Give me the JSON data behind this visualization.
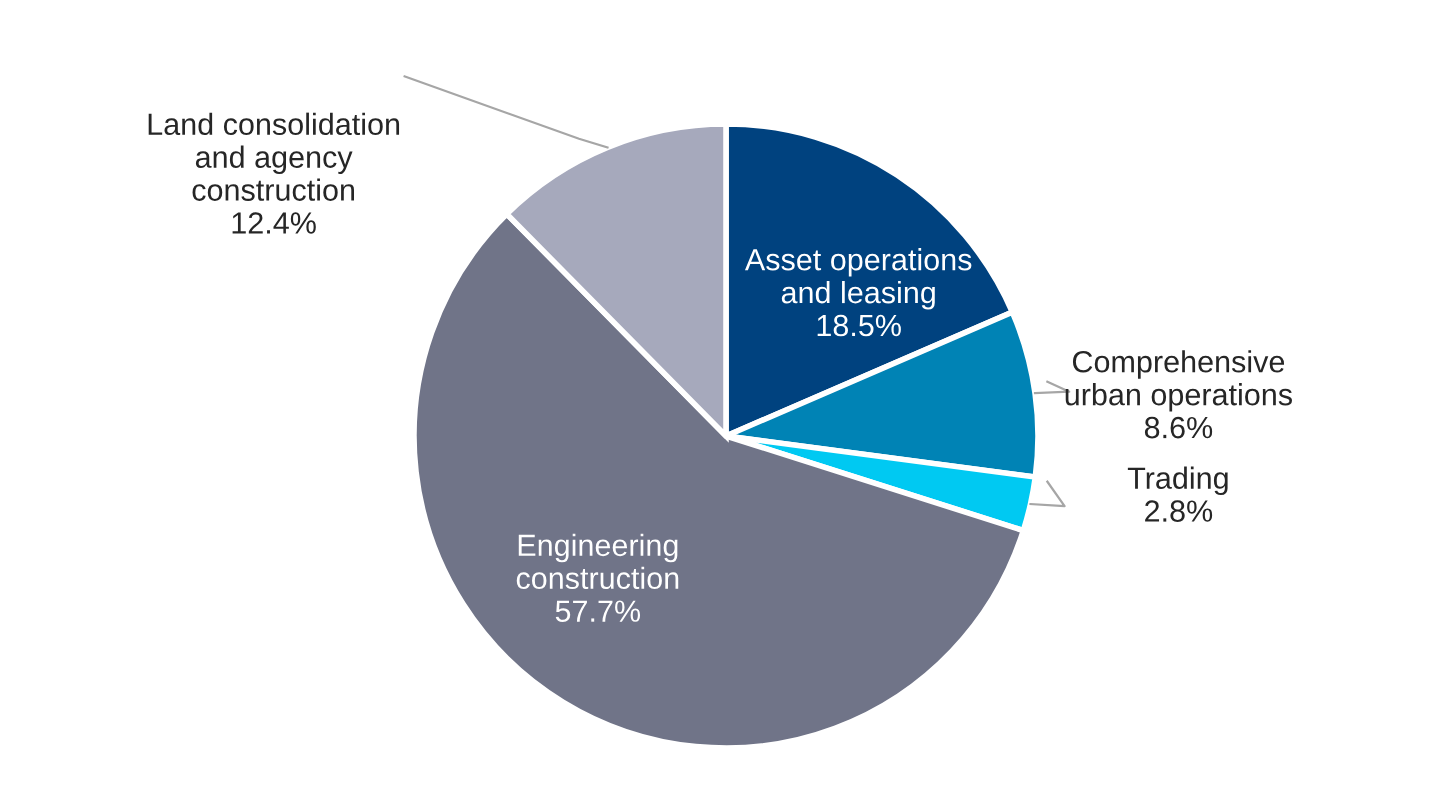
{
  "chart_data": {
    "type": "pie",
    "categories": [
      "Asset operations\nand leasing",
      "Comprehensive\nurban operations",
      "Trading",
      "Engineering\nconstruction",
      "Land consolidation\nand agency\nconstruction"
    ],
    "values": [
      18.5,
      8.6,
      2.8,
      57.7,
      12.4
    ],
    "colors": [
      "#00427f",
      "#0083b5",
      "#00c9f2",
      "#707488",
      "#a6a9bc"
    ],
    "value_labels": [
      "18.5%",
      "8.6%",
      "2.8%",
      "57.7%",
      "12.4%"
    ]
  }
}
